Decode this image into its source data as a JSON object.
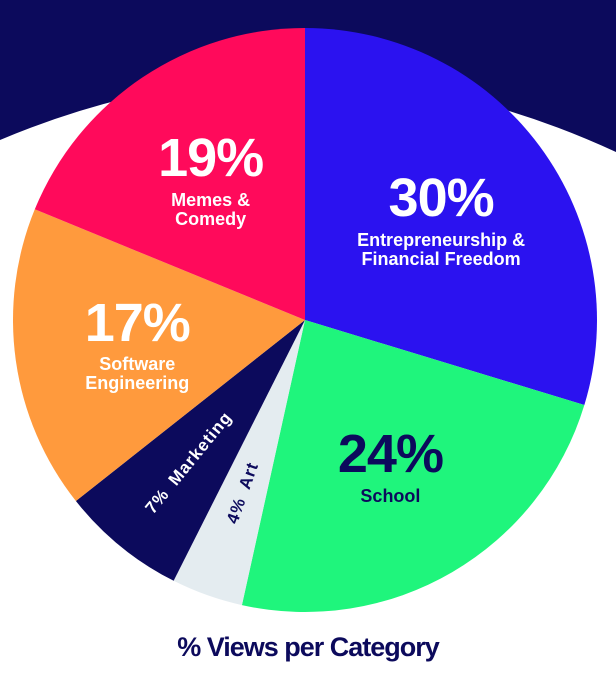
{
  "chart_data": {
    "type": "pie",
    "title": "% Views per Category",
    "categories": [
      "Entrepreneurship & Financial Freedom",
      "School",
      "Art",
      "Marketing",
      "Software Engineering",
      "Memes & Comedy"
    ],
    "values": [
      30,
      24,
      4,
      7,
      17,
      19
    ],
    "value_labels": [
      "30%",
      "24%",
      "4%",
      "7%",
      "17%",
      "19%"
    ],
    "colors": [
      "#2b12f0",
      "#1ff57c",
      "#e4ecf0",
      "#0c0a5c",
      "#ff9a3d",
      "#ff0a5b"
    ]
  }
}
